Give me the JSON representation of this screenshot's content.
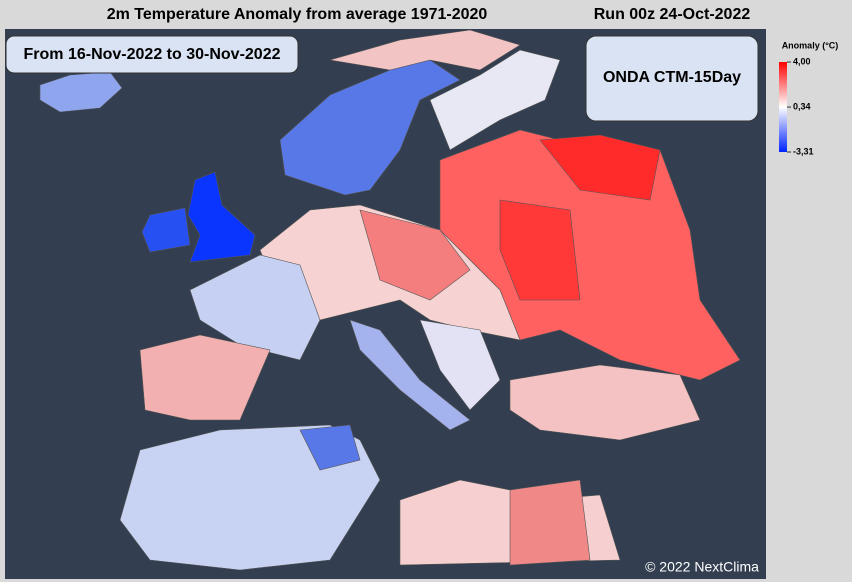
{
  "header": {
    "title": "2m Temperature Anomaly from average 1971-2020",
    "run": "Run 00z 24-Oct-2022"
  },
  "period": "From 16-Nov-2022 to 30-Nov-2022",
  "model": "ONDA CTM-15Day",
  "legend": {
    "title": "Anomaly (°C)",
    "stops": [
      {
        "value": 4,
        "label": "4,00",
        "color": "#ff0000"
      },
      {
        "value": 0.34,
        "label": "0,34",
        "color": "#ffffff"
      },
      {
        "value": -3.31,
        "label": "-3,31",
        "color": "#0022ff"
      }
    ]
  },
  "credit": "© 2022 NextClima"
}
